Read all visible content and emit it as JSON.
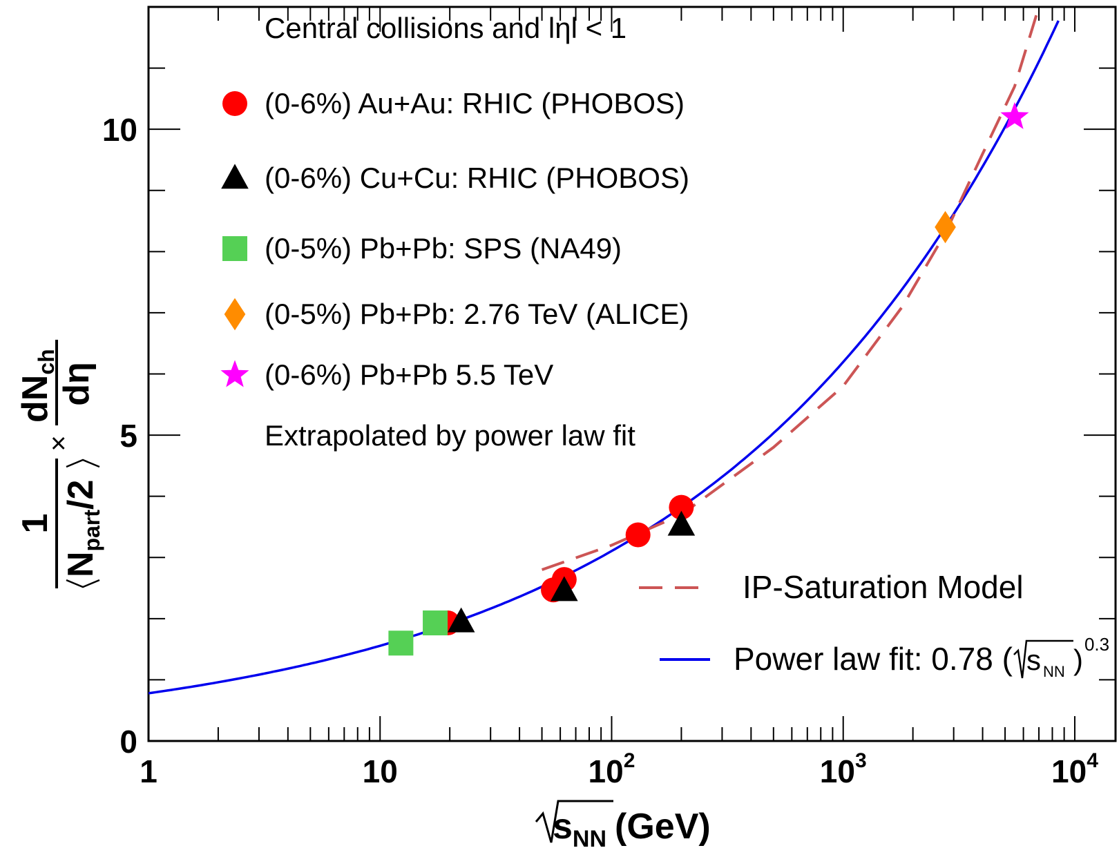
{
  "chart_data": {
    "type": "scatter",
    "x_scale": "log",
    "xlim": [
      1,
      15000
    ],
    "ylim": [
      0,
      12
    ],
    "grid": false,
    "xlabel": {
      "main": "s",
      "sub": "NN",
      "unit": "(GeV)"
    },
    "ylabel": {
      "fraction_numerator": "1",
      "fraction_denominator_main": "N",
      "fraction_denominator_sub": "part",
      "fraction_denominator_tail": "/2",
      "times": "×",
      "deriv_numerator_main": "dN",
      "deriv_numerator_sub": "ch",
      "deriv_denominator": "dη"
    },
    "x_ticks": [
      {
        "value": 1,
        "label": "1",
        "sup": ""
      },
      {
        "value": 10,
        "label": "10",
        "sup": ""
      },
      {
        "value": 100,
        "label": "10",
        "sup": "2"
      },
      {
        "value": 1000,
        "label": "10",
        "sup": "3"
      },
      {
        "value": 10000,
        "label": "10",
        "sup": "4"
      }
    ],
    "y_ticks": [
      {
        "value": 0,
        "label": "0"
      },
      {
        "value": 5,
        "label": "5"
      },
      {
        "value": 10,
        "label": "10"
      }
    ],
    "header_lines": [
      "Central collisions and lηl < 1"
    ],
    "footer_lines": [
      "Extrapolated by power law fit"
    ],
    "series": [
      {
        "name": "(0-6%) Au+Au: RHIC (PHOBOS)",
        "marker": "circle",
        "color": "#ff0000",
        "points": [
          {
            "x": 19.6,
            "y": 1.93
          },
          {
            "x": 56,
            "y": 2.47
          },
          {
            "x": 62.4,
            "y": 2.64
          },
          {
            "x": 130,
            "y": 3.37
          },
          {
            "x": 200,
            "y": 3.82
          }
        ]
      },
      {
        "name": "(0-6%)  Cu+Cu: RHIC (PHOBOS)",
        "marker": "triangle",
        "color": "#000000",
        "points": [
          {
            "x": 22.4,
            "y": 1.95
          },
          {
            "x": 62.4,
            "y": 2.46
          },
          {
            "x": 200,
            "y": 3.53
          }
        ]
      },
      {
        "name": "(0-5%)  Pb+Pb: SPS (NA49)",
        "marker": "square",
        "color": "#55d055",
        "points": [
          {
            "x": 12.3,
            "y": 1.6
          },
          {
            "x": 17.3,
            "y": 1.93
          }
        ]
      },
      {
        "name": "(0-5%) Pb+Pb: 2.76 TeV (ALICE)",
        "marker": "diamond",
        "color": "#ff8c00",
        "points": [
          {
            "x": 2760,
            "y": 8.4
          }
        ]
      },
      {
        "name": "(0-6%) Pb+Pb 5.5 TeV",
        "marker": "star",
        "color": "#ff00ff",
        "points": [
          {
            "x": 5500,
            "y": 10.2
          }
        ]
      }
    ],
    "curves": [
      {
        "name": "Power law fit",
        "label_prefix": "Power law fit: 0.78 (",
        "label_root": "s",
        "label_sub": "NN",
        "label_close": ")",
        "label_exp": "0.3",
        "style": "solid",
        "color": "#0000ee",
        "coefficient": 0.78,
        "exponent": 0.3,
        "x_range": [
          1,
          8500
        ]
      },
      {
        "name": "IP-Saturation Model",
        "label": "IP-Saturation Model",
        "style": "dashed",
        "color": "#cc5555",
        "points": [
          {
            "x": 50,
            "y": 2.8
          },
          {
            "x": 100,
            "y": 3.2
          },
          {
            "x": 200,
            "y": 3.7
          },
          {
            "x": 500,
            "y": 4.8
          },
          {
            "x": 1000,
            "y": 5.8
          },
          {
            "x": 1800,
            "y": 7.1
          },
          {
            "x": 2760,
            "y": 8.3
          },
          {
            "x": 4000,
            "y": 9.6
          },
          {
            "x": 5500,
            "y": 10.7
          },
          {
            "x": 7000,
            "y": 12.0
          }
        ]
      }
    ]
  }
}
